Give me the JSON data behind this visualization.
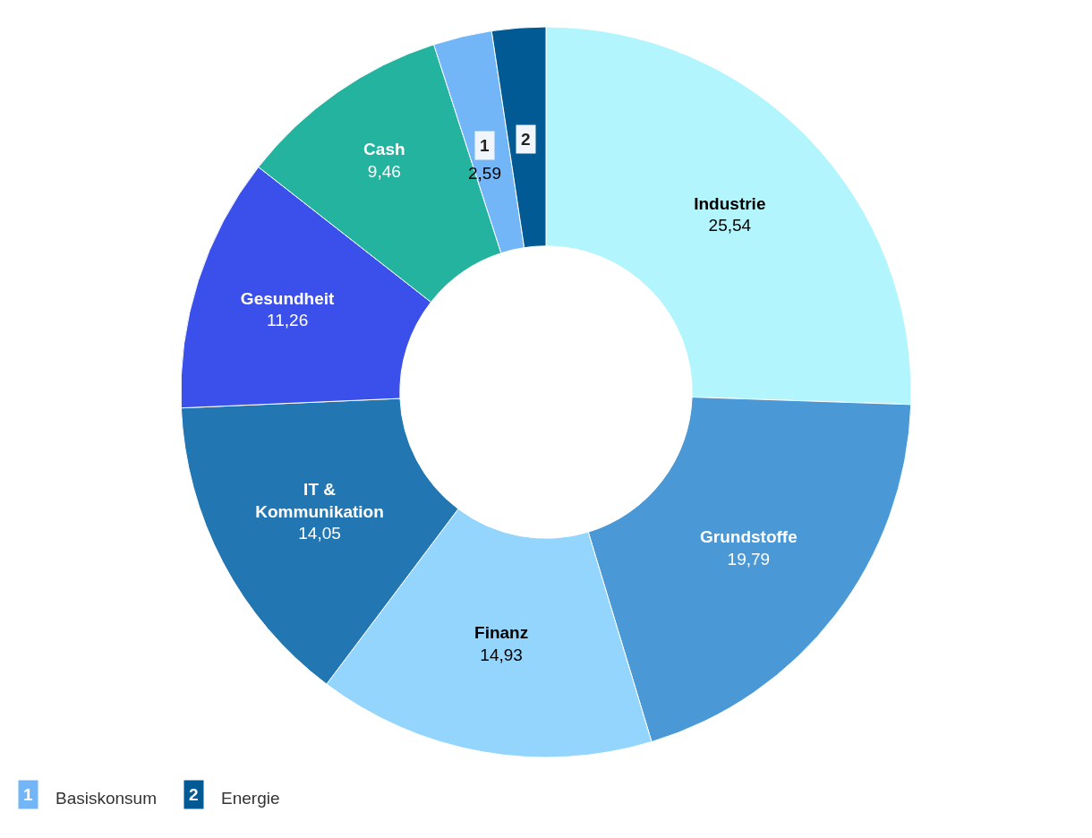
{
  "chart_data": {
    "type": "donut",
    "categories": [
      "Industrie",
      "Grundstoffe",
      "Finanz",
      "IT & Kommunikation",
      "Gesundheit",
      "Cash",
      "Basiskonsum",
      "Energie"
    ],
    "values": [
      25.54,
      19.79,
      14.93,
      14.05,
      11.26,
      9.46,
      2.59,
      2.38
    ],
    "value_labels": [
      "25,54",
      "19,79",
      "14,93",
      "14,05",
      "11,26",
      "9,46",
      "2,59",
      null
    ],
    "colors": [
      "#b3f5fc",
      "#4a98d5",
      "#94d5fd",
      "#2277b3",
      "#3b50eb",
      "#24b39e",
      "#72b6f7",
      "#015a94"
    ],
    "annotations": [
      "1",
      "2"
    ],
    "legend": "bottom left"
  }
}
